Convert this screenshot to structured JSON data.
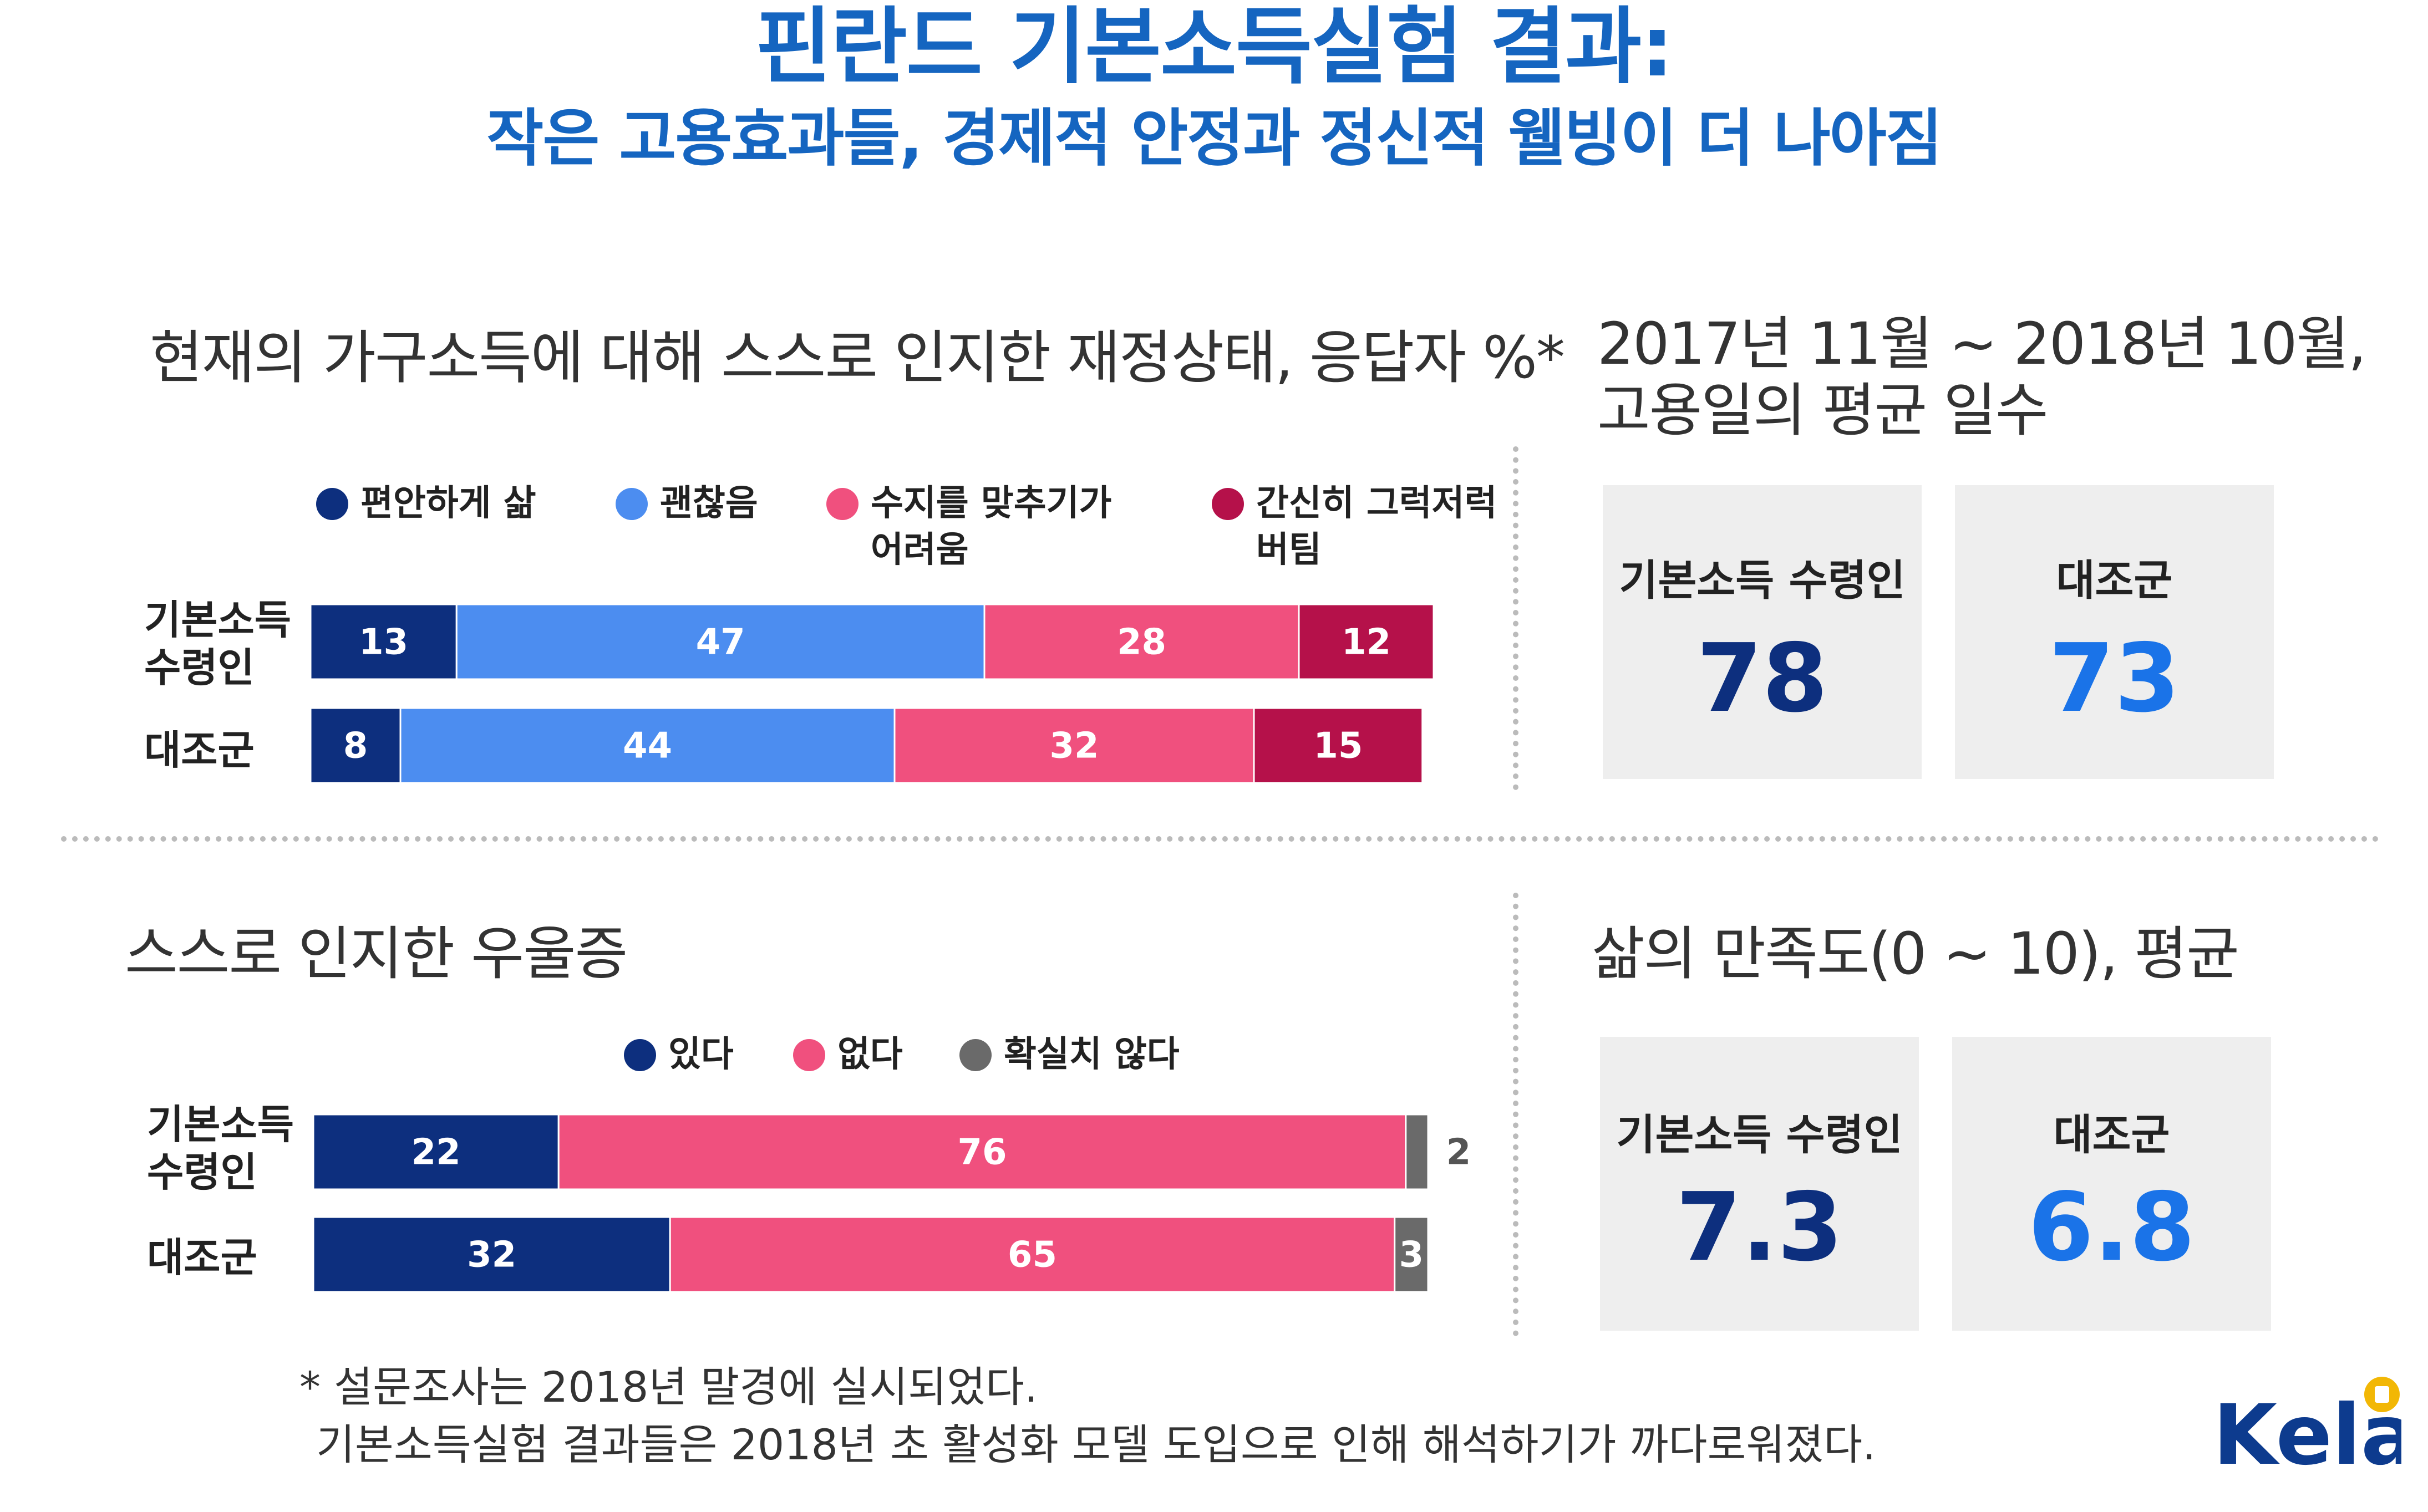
{
  "title": "핀란드 기본소득실험 결과:",
  "subtitle": "작은 고용효과들, 경제적 안정과 정신적 웰빙이 더 나아짐",
  "colors": {
    "title_blue": "#1565C0",
    "navy": "#0D2F7E",
    "blue": "#4C8DF0",
    "pink": "#F0507E",
    "crimson": "#B5114A",
    "gray": "#6A6A6A",
    "stat_basic": "#0D2F7E",
    "stat_control": "#1A73E8"
  },
  "chart_data": [
    {
      "type": "bar",
      "orientation": "horizontal",
      "stacked": true,
      "title": "현재의 가구소득에 대해 스스로 인지한 재정상태, 응답자 %*",
      "categories": [
        "기본소득\n수령인",
        "대조군"
      ],
      "category_lines": [
        [
          "기본소득",
          "수령인"
        ],
        [
          "대조군"
        ]
      ],
      "series": [
        {
          "name": "편안하게 삶",
          "name_lines": [
            "편안하게 삶"
          ],
          "color": "#0D2F7E",
          "values": [
            13,
            8
          ]
        },
        {
          "name": "괜찮음",
          "name_lines": [
            "괜찮음"
          ],
          "color": "#4C8DF0",
          "values": [
            47,
            44
          ]
        },
        {
          "name": "수지를 맞추기가 어려움",
          "name_lines": [
            "수지를 맞추기가",
            "어려움"
          ],
          "color": "#F0507E",
          "values": [
            28,
            32
          ]
        },
        {
          "name": "간신히 그럭저럭 버팀",
          "name_lines": [
            "간신히 그럭저럭",
            "버팀"
          ],
          "color": "#B5114A",
          "values": [
            12,
            15
          ]
        }
      ],
      "legend_position": "top",
      "axis_visible": false,
      "xlim": [
        0,
        100
      ]
    },
    {
      "type": "bar",
      "orientation": "horizontal",
      "stacked": true,
      "title": "스스로 인지한 우울증",
      "categories": [
        "기본소득\n수령인",
        "대조군"
      ],
      "category_lines": [
        [
          "기본소득",
          "수령인"
        ],
        [
          "대조군"
        ]
      ],
      "series": [
        {
          "name": "있다",
          "name_lines": [
            "있다"
          ],
          "color": "#0D2F7E",
          "values": [
            22,
            32
          ]
        },
        {
          "name": "없다",
          "name_lines": [
            "없다"
          ],
          "color": "#F0507E",
          "values": [
            76,
            65
          ]
        },
        {
          "name": "확실치 않다",
          "name_lines": [
            "확실치 않다"
          ],
          "color": "#6A6A6A",
          "values": [
            2,
            3
          ]
        }
      ],
      "legend_position": "top",
      "axis_visible": false,
      "xlim": [
        0,
        100
      ]
    },
    {
      "type": "table",
      "title": "2017년 11월 ~ 2018년 10월, 고용일의 평균 일수",
      "title_lines": [
        "2017년 11월 ~ 2018년 10월,",
        "고용일의 평균 일수"
      ],
      "categories": [
        "기본소득 수령인",
        "대조군"
      ],
      "values": [
        78,
        73
      ]
    },
    {
      "type": "table",
      "title": "삶의 만족도(0 ~ 10), 평균",
      "title_lines": [
        "삶의 만족도(0 ~ 10), 평균"
      ],
      "categories": [
        "기본소득 수령인",
        "대조군"
      ],
      "values": [
        7.3,
        6.8
      ]
    }
  ],
  "stat_display": {
    "employment": [
      "78",
      "73"
    ],
    "satisfaction": [
      "7.3",
      "6.8"
    ]
  },
  "footnote": {
    "line1": "* 설문조사는 2018년 말경에 실시되었다.",
    "line2": "기본소득실험 결과들은 2018년 초 활성화 모델 도입으로 인해 해석하기가 까다로워졌다."
  },
  "logo": {
    "text": "Kela",
    "color": "#0D3B8E",
    "badge_color": "#F2B705"
  }
}
